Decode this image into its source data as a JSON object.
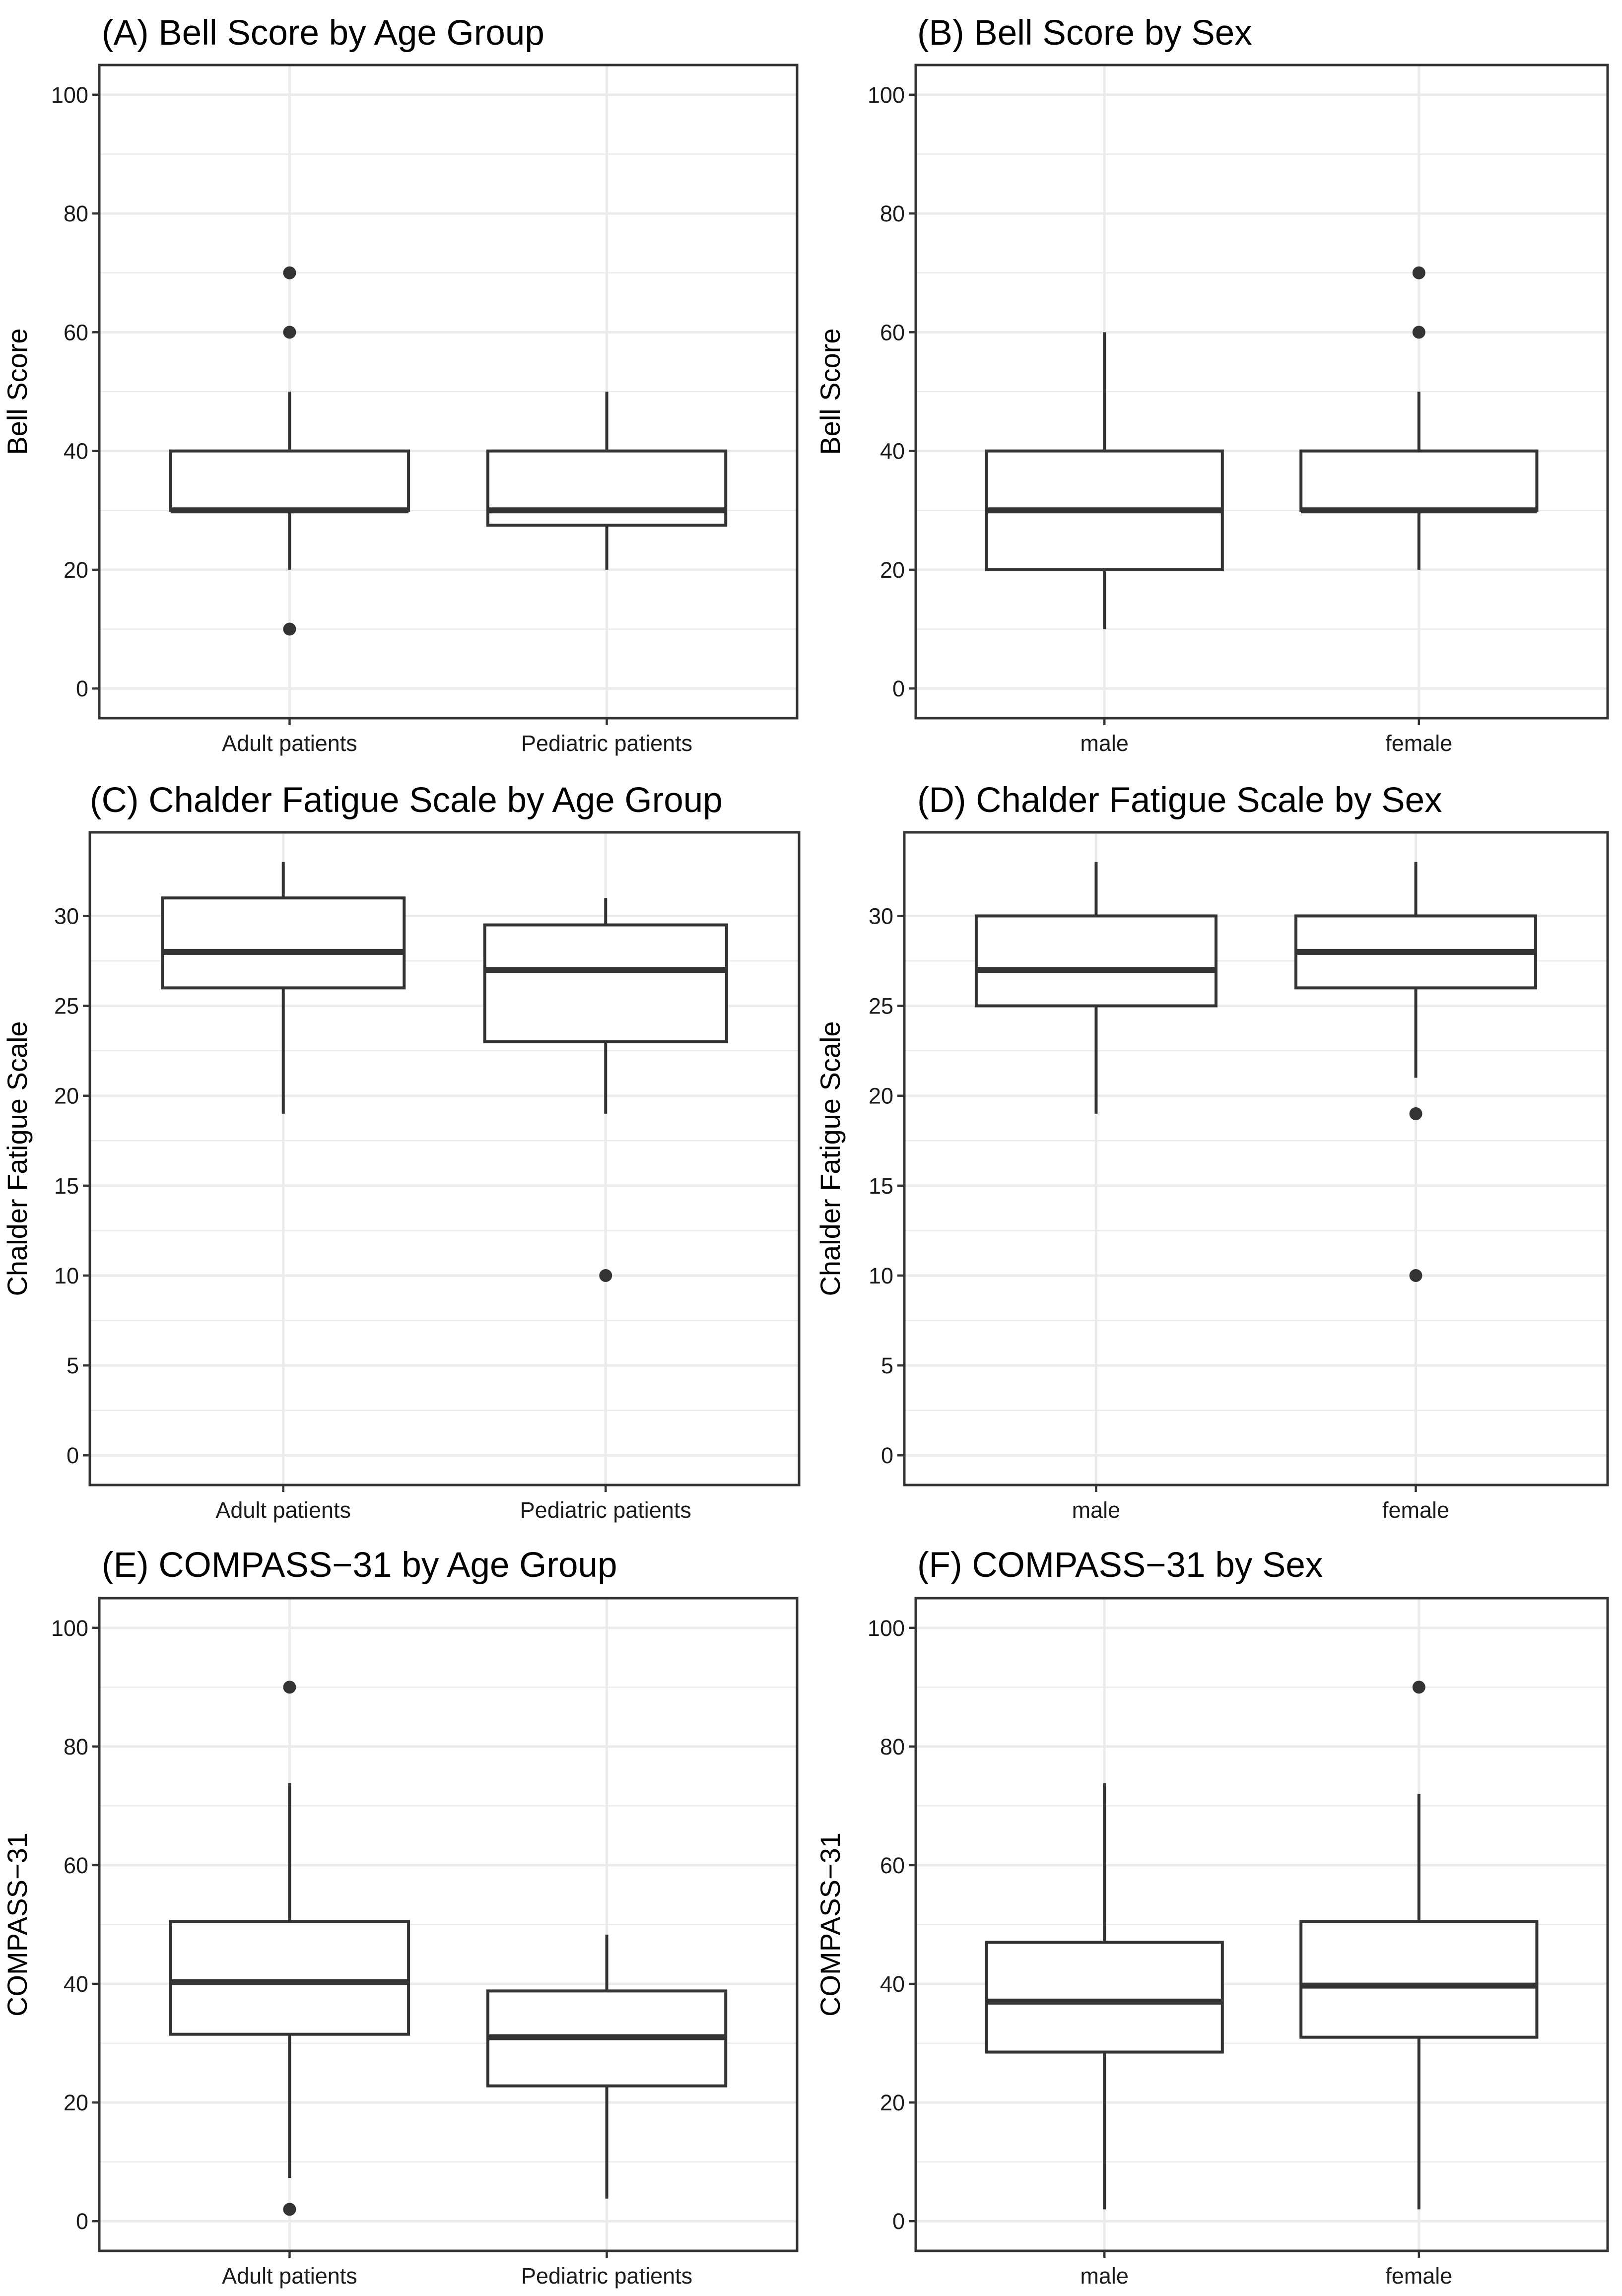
{
  "chart_data": [
    {
      "id": "A",
      "type": "box",
      "title": "(A) Bell Score by Age Group",
      "xlabel": "",
      "ylabel": "Bell Score",
      "ylim": [
        -5,
        105
      ],
      "yticks": [
        0,
        20,
        40,
        60,
        80,
        100
      ],
      "ytick_labels": [
        "0",
        "20",
        "40",
        "60",
        "80",
        "100"
      ],
      "grid": true,
      "categories": [
        "Adult patients",
        "Pediatric patients"
      ],
      "boxes": [
        {
          "category": "Adult patients",
          "q1": 30,
          "median": 30,
          "q3": 40,
          "whisker_low": 20,
          "whisker_high": 50,
          "outliers": [
            10,
            60,
            70
          ]
        },
        {
          "category": "Pediatric patients",
          "q1": 27.5,
          "median": 30,
          "q3": 40,
          "whisker_low": 20,
          "whisker_high": 50,
          "outliers": []
        }
      ]
    },
    {
      "id": "B",
      "type": "box",
      "title": "(B) Bell Score by Sex",
      "xlabel": "",
      "ylabel": "Bell Score",
      "ylim": [
        -5,
        105
      ],
      "yticks": [
        0,
        20,
        40,
        60,
        80,
        100
      ],
      "ytick_labels": [
        "0",
        "20",
        "40",
        "60",
        "80",
        "100"
      ],
      "grid": true,
      "categories": [
        "male",
        "female"
      ],
      "boxes": [
        {
          "category": "male",
          "q1": 20,
          "median": 30,
          "q3": 40,
          "whisker_low": 10,
          "whisker_high": 60,
          "outliers": []
        },
        {
          "category": "female",
          "q1": 30,
          "median": 30,
          "q3": 40,
          "whisker_low": 20,
          "whisker_high": 50,
          "outliers": [
            60,
            70
          ]
        }
      ]
    },
    {
      "id": "C",
      "type": "box",
      "title": "(C) Chalder Fatigue Scale by Age Group",
      "xlabel": "",
      "ylabel": "Chalder Fatigue Scale",
      "ylim": [
        -1.65,
        34.65
      ],
      "yticks": [
        0,
        5,
        10,
        15,
        20,
        25,
        30
      ],
      "ytick_labels": [
        "0",
        "5",
        "10",
        "15",
        "20",
        "25",
        "30"
      ],
      "grid": true,
      "categories": [
        "Adult patients",
        "Pediatric patients"
      ],
      "boxes": [
        {
          "category": "Adult patients",
          "q1": 26,
          "median": 28,
          "q3": 31,
          "whisker_low": 19,
          "whisker_high": 33,
          "outliers": []
        },
        {
          "category": "Pediatric patients",
          "q1": 23,
          "median": 27,
          "q3": 29.5,
          "whisker_low": 19,
          "whisker_high": 31,
          "outliers": [
            10
          ]
        }
      ]
    },
    {
      "id": "D",
      "type": "box",
      "title": "(D) Chalder Fatigue Scale by Sex",
      "xlabel": "",
      "ylabel": "Chalder Fatigue Scale",
      "ylim": [
        -1.65,
        34.65
      ],
      "yticks": [
        0,
        5,
        10,
        15,
        20,
        25,
        30
      ],
      "ytick_labels": [
        "0",
        "5",
        "10",
        "15",
        "20",
        "25",
        "30"
      ],
      "grid": true,
      "categories": [
        "male",
        "female"
      ],
      "boxes": [
        {
          "category": "male",
          "q1": 25,
          "median": 27,
          "q3": 30,
          "whisker_low": 19,
          "whisker_high": 33,
          "outliers": []
        },
        {
          "category": "female",
          "q1": 26,
          "median": 28,
          "q3": 30,
          "whisker_low": 21,
          "whisker_high": 33,
          "outliers": [
            10,
            19
          ]
        }
      ]
    },
    {
      "id": "E",
      "type": "box",
      "title": "(E) COMPASS−31 by Age Group",
      "xlabel": "",
      "ylabel": "COMPASS−31",
      "ylim": [
        -5,
        105
      ],
      "yticks": [
        0,
        20,
        40,
        60,
        80,
        100
      ],
      "ytick_labels": [
        "0",
        "20",
        "40",
        "60",
        "80",
        "100"
      ],
      "grid": true,
      "categories": [
        "Adult patients",
        "Pediatric patients"
      ],
      "boxes": [
        {
          "category": "Adult patients",
          "q1": 31.5,
          "median": 40.3,
          "q3": 50.5,
          "whisker_low": 7.3,
          "whisker_high": 73.8,
          "outliers": [
            2,
            90
          ]
        },
        {
          "category": "Pediatric patients",
          "q1": 22.8,
          "median": 31,
          "q3": 38.8,
          "whisker_low": 3.8,
          "whisker_high": 48.3,
          "outliers": []
        }
      ]
    },
    {
      "id": "F",
      "type": "box",
      "title": "(F) COMPASS−31 by Sex",
      "xlabel": "",
      "ylabel": "COMPASS−31",
      "ylim": [
        -5,
        105
      ],
      "yticks": [
        0,
        20,
        40,
        60,
        80,
        100
      ],
      "ytick_labels": [
        "0",
        "20",
        "40",
        "60",
        "80",
        "100"
      ],
      "grid": true,
      "categories": [
        "male",
        "female"
      ],
      "boxes": [
        {
          "category": "male",
          "q1": 28.5,
          "median": 37,
          "q3": 47,
          "whisker_low": 2,
          "whisker_high": 73.8,
          "outliers": []
        },
        {
          "category": "female",
          "q1": 31,
          "median": 39.7,
          "q3": 50.5,
          "whisker_low": 2,
          "whisker_high": 72,
          "outliers": [
            90
          ]
        }
      ]
    }
  ],
  "colors": {
    "frame": "#333333",
    "grid": "#ebebeb",
    "box_fill": "#ffffff",
    "text": "#000000"
  }
}
